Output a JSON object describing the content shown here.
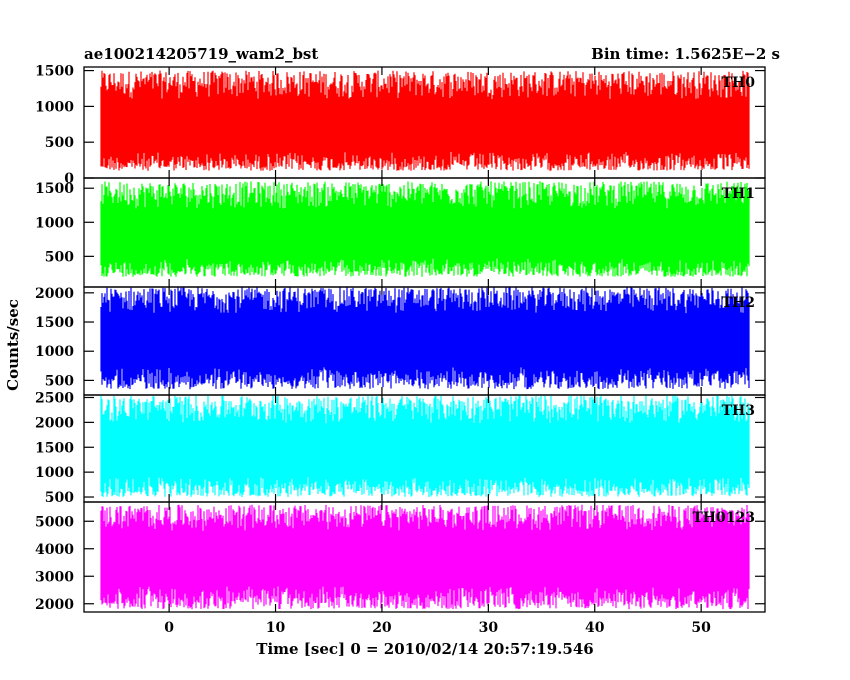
{
  "chart_data": {
    "type": "line",
    "title_left": "ae100214205719_wam2_bst",
    "title_right": "Bin time: 1.5625E−2 s",
    "xlabel": "Time [sec] 0 = 2010/02/14 20:57:19.546",
    "ylabel": "Counts/sec",
    "xlim": [
      -8,
      56
    ],
    "x_ticks": [
      "0",
      "10",
      "20",
      "30",
      "40",
      "50"
    ],
    "grid": false,
    "panels": [
      {
        "name": "TH0",
        "color": "#ff0000",
        "ylim": [
          0,
          1550
        ],
        "y_ticks": [
          "0",
          "500",
          "1000",
          "1500"
        ],
        "data_range": [
          100,
          1500
        ],
        "baseline": 700
      },
      {
        "name": "TH1",
        "color": "#00ff00",
        "ylim": [
          50,
          1650
        ],
        "y_ticks": [
          "500",
          "1000",
          "1500"
        ],
        "data_range": [
          200,
          1600
        ],
        "baseline": 800
      },
      {
        "name": "TH2",
        "color": "#0000ff",
        "ylim": [
          250,
          2100
        ],
        "y_ticks": [
          "500",
          "1000",
          "1500",
          "2000"
        ],
        "data_range": [
          350,
          2100
        ],
        "baseline": 1200
      },
      {
        "name": "TH3",
        "color": "#00ffff",
        "ylim": [
          400,
          2550
        ],
        "y_ticks": [
          "500",
          "1000",
          "1500",
          "2000",
          "2500"
        ],
        "data_range": [
          500,
          2550
        ],
        "baseline": 1400
      },
      {
        "name": "TH0123",
        "color": "#ff00ff",
        "ylim": [
          1700,
          5700
        ],
        "y_ticks": [
          "2000",
          "3000",
          "4000",
          "5000"
        ],
        "data_range": [
          1800,
          5600
        ],
        "baseline": 3700
      }
    ]
  }
}
